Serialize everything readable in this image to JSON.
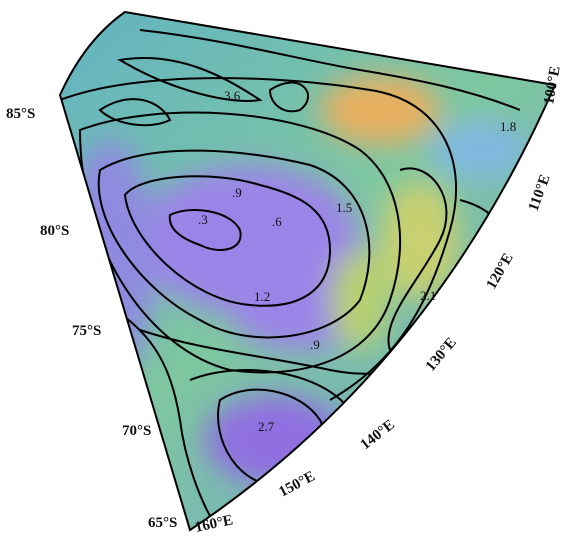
{
  "latitude_labels": [
    "85°S",
    "80°S",
    "75°S",
    "70°S",
    "65°S"
  ],
  "longitude_labels": [
    "100°E",
    "110°E",
    "120°E",
    "130°E",
    "140°E",
    "150°E",
    "160°E"
  ],
  "contour_labels": [
    "3.6",
    "1.8",
    ".9",
    ".3",
    ".6",
    "1.5",
    "1.2",
    "2.1",
    ".9",
    "2.7"
  ]
}
